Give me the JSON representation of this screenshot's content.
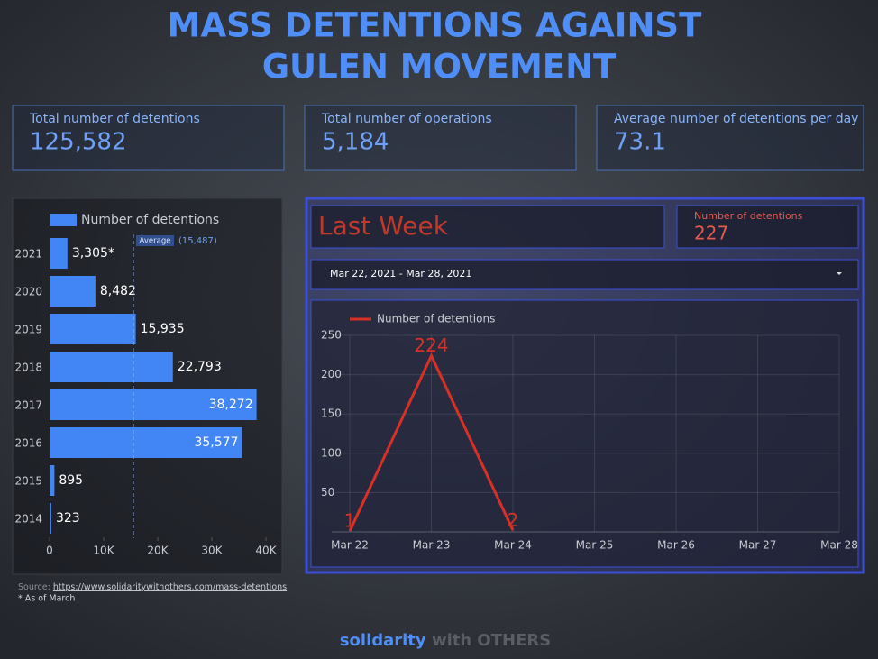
{
  "header": {
    "title_lines": [
      "MASS DETENTIONS AGAINST",
      "GULEN MOVEMENT"
    ]
  },
  "kpis": [
    {
      "label": "Total number of detentions",
      "value": "125,582"
    },
    {
      "label": "Total number of operations",
      "value": "5,184"
    },
    {
      "label": "Average number of detentions per day",
      "value": "73.1"
    }
  ],
  "last_week": {
    "title": "Last Week",
    "metric_label": "Number of detentions",
    "metric_value": "227",
    "date_range": "Mar 22, 2021 - Mar 28, 2021"
  },
  "chart_data": [
    {
      "type": "bar",
      "orientation": "horizontal",
      "categories": [
        "2021",
        "2020",
        "2019",
        "2018",
        "2017",
        "2016",
        "2015",
        "2014"
      ],
      "series": [
        {
          "name": "Number of detentions",
          "color": "#4285f4",
          "values": [
            3305,
            8482,
            15935,
            22793,
            38272,
            35577,
            895,
            323
          ],
          "value_labels": [
            "3,305*",
            "8,482",
            "15,935",
            "22,793",
            "38,272",
            "35,577",
            "895",
            "323"
          ]
        }
      ],
      "xlim": [
        0,
        40000
      ],
      "xticks": [
        0,
        {
          "value": 10000,
          "label": "10K"
        },
        {
          "value": 20000,
          "label": "20K"
        },
        {
          "value": 30000,
          "label": "30K"
        },
        {
          "value": 40000,
          "label": "40K"
        }
      ],
      "reference_line": {
        "label": "Average",
        "value": 15487,
        "value_label": "(15,487)"
      },
      "legend": "top"
    },
    {
      "type": "line",
      "categories": [
        "Mar 22",
        "Mar 23",
        "Mar 24",
        "Mar 25",
        "Mar 26",
        "Mar 27",
        "Mar 28"
      ],
      "series": [
        {
          "name": "Number of detentions",
          "color": "#d93025",
          "values": [
            1,
            224,
            2,
            null,
            null,
            null,
            null
          ]
        }
      ],
      "ylim": [
        0,
        250
      ],
      "yticks": [
        50,
        100,
        150,
        200,
        250
      ],
      "grid": true,
      "legend": "top"
    }
  ],
  "footer": {
    "source_prefix": "Source:",
    "source_url": "https://www.solidaritywithothers.com/mass-detentions",
    "note": "* As of March",
    "brand_a": "solidarity",
    "brand_b": "with OTHERS"
  }
}
